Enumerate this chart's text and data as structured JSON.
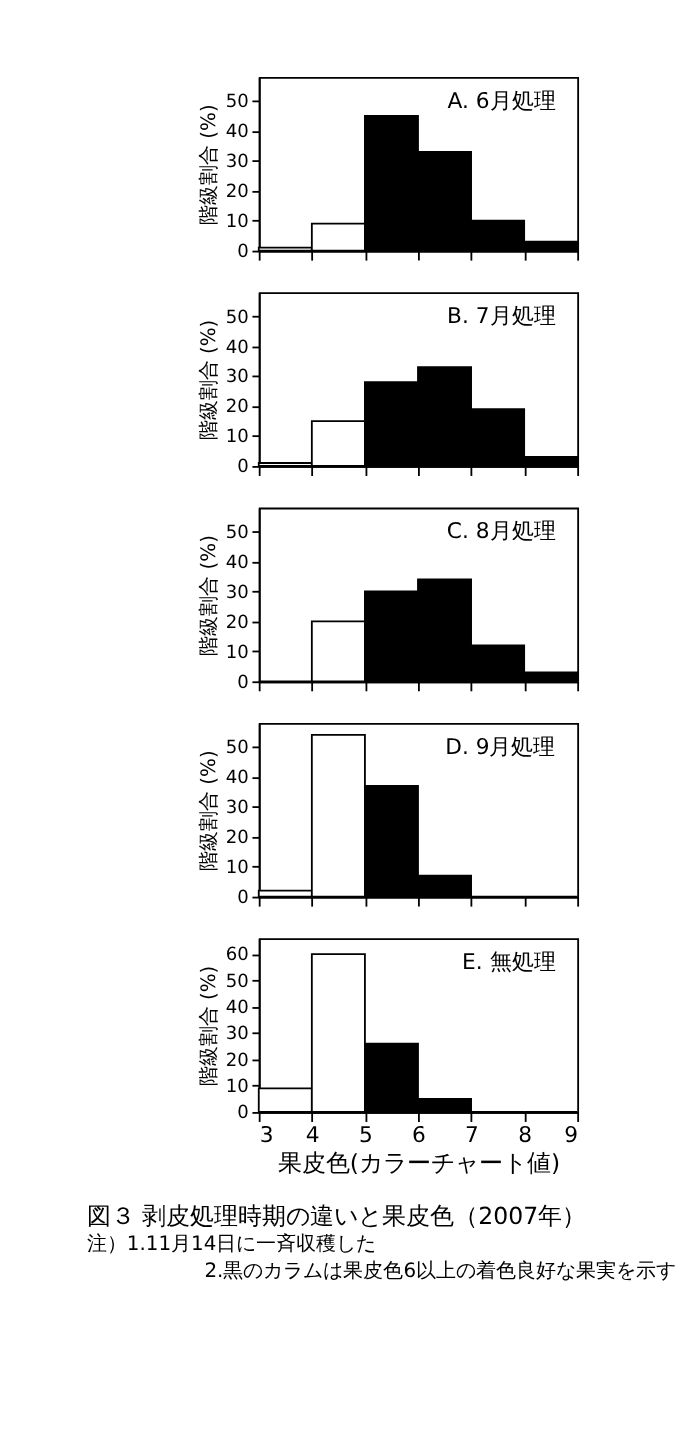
{
  "chart_data": [
    {
      "type": "histogram",
      "title": "A. 6月処理",
      "ylabel": "階級割合 (%)",
      "bins": [
        3,
        4,
        5,
        6,
        7,
        8,
        9
      ],
      "values": [
        1,
        9,
        45,
        33,
        10,
        3
      ],
      "colors": [
        "#ffffff",
        "#ffffff",
        "#000000",
        "#000000",
        "#000000",
        "#000000"
      ],
      "xlim": [
        3,
        9
      ],
      "xticks": [
        3,
        4,
        5,
        6,
        7,
        8,
        9
      ],
      "ylim": [
        0,
        58
      ],
      "yticks": [
        0,
        10,
        20,
        30,
        40,
        50
      ],
      "grid": false,
      "tick_labels": "y"
    },
    {
      "type": "histogram",
      "title": "B. 7月処理",
      "ylabel": "階級割合 (%)",
      "bins": [
        3,
        4,
        5,
        6,
        7,
        8,
        9
      ],
      "values": [
        1,
        15,
        28,
        33,
        19,
        3
      ],
      "colors": [
        "#ffffff",
        "#ffffff",
        "#000000",
        "#000000",
        "#000000",
        "#000000"
      ],
      "xlim": [
        3,
        9
      ],
      "xticks": [
        3,
        4,
        5,
        6,
        7,
        8,
        9
      ],
      "ylim": [
        0,
        58
      ],
      "yticks": [
        0,
        10,
        20,
        30,
        40,
        50
      ],
      "grid": false,
      "tick_labels": "y"
    },
    {
      "type": "histogram",
      "title": "C. 8月処理",
      "ylabel": "階級割合 (%)",
      "bins": [
        3,
        4,
        5,
        6,
        7,
        8,
        9
      ],
      "values": [
        0,
        20,
        30,
        34,
        12,
        3
      ],
      "colors": [
        "#ffffff",
        "#ffffff",
        "#000000",
        "#000000",
        "#000000",
        "#000000"
      ],
      "xlim": [
        3,
        9
      ],
      "xticks": [
        3,
        4,
        5,
        6,
        7,
        8,
        9
      ],
      "ylim": [
        0,
        58
      ],
      "yticks": [
        0,
        10,
        20,
        30,
        40,
        50
      ],
      "grid": false,
      "tick_labels": "y"
    },
    {
      "type": "histogram",
      "title": "D. 9月処理",
      "ylabel": "階級割合 (%)",
      "bins": [
        3,
        4,
        5,
        6,
        7,
        8,
        9
      ],
      "values": [
        2,
        54,
        37,
        7,
        0,
        0
      ],
      "colors": [
        "#ffffff",
        "#ffffff",
        "#000000",
        "#000000",
        "#000000",
        "#000000"
      ],
      "xlim": [
        3,
        9
      ],
      "xticks": [
        3,
        4,
        5,
        6,
        7,
        8,
        9
      ],
      "ylim": [
        0,
        58
      ],
      "yticks": [
        0,
        10,
        20,
        30,
        40,
        50
      ],
      "grid": false,
      "tick_labels": "y"
    },
    {
      "type": "histogram",
      "title": "E. 無処理",
      "ylabel": "階級割合 (%)",
      "xlabel": "果皮色(カラーチャート値)",
      "bins": [
        3,
        4,
        5,
        6,
        7,
        8,
        9
      ],
      "values": [
        9,
        60,
        26,
        5,
        0,
        0
      ],
      "colors": [
        "#ffffff",
        "#ffffff",
        "#000000",
        "#000000",
        "#000000",
        "#000000"
      ],
      "xlim": [
        3,
        9
      ],
      "xticks": [
        3,
        4,
        5,
        6,
        7,
        8,
        9
      ],
      "ylim": [
        0,
        66
      ],
      "yticks": [
        0,
        10,
        20,
        30,
        40,
        50,
        60
      ],
      "grid": false,
      "annotations": [
        "図３ 剥皮処理時期の違いと果皮色（2007年）",
        "注）1.11月14日に一斉収穫した",
        "2.黒のカラムは果皮色6以上の着色良好な果実を示す"
      ]
    }
  ]
}
